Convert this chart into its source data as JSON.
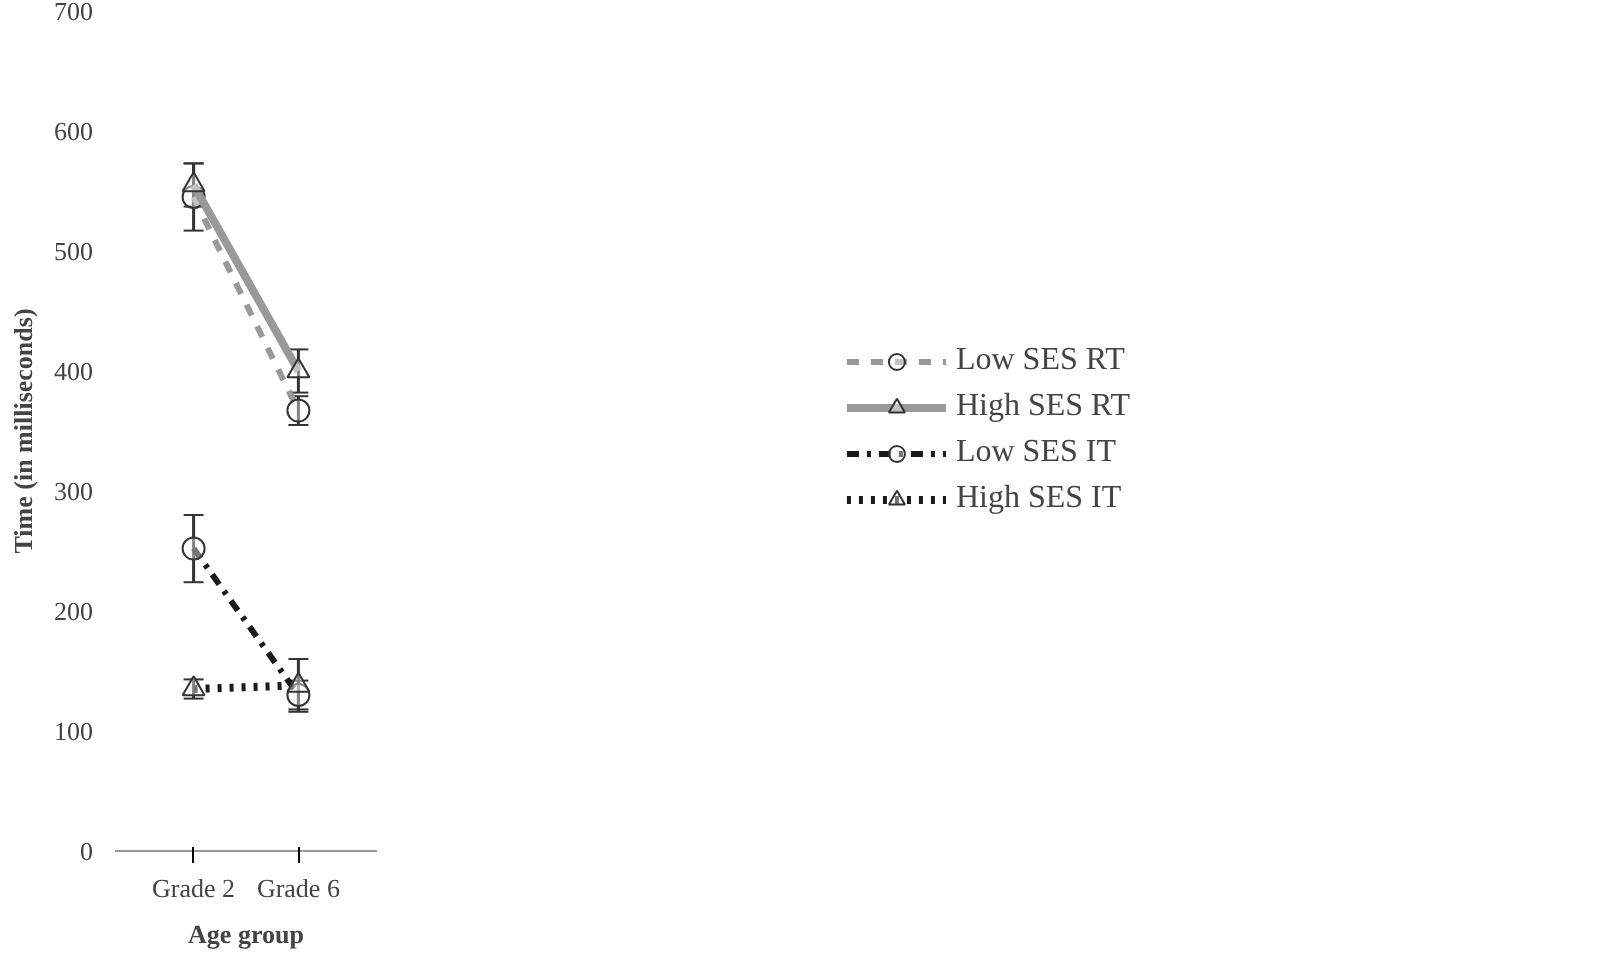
{
  "chart_data": {
    "type": "line",
    "xlabel": "Age group",
    "ylabel": "Time (in milliseconds)",
    "categories": [
      "Grade 2",
      "Grade 6"
    ],
    "ylim": [
      0,
      700
    ],
    "yticks": [
      0,
      100,
      200,
      300,
      400,
      500,
      600,
      700
    ],
    "grid": false,
    "legend": "right",
    "series": [
      {
        "name": "Low SES RT",
        "color": "#999999",
        "values": [
          545,
          367
        ],
        "errors": [
          28,
          12
        ],
        "marker": "circle",
        "line_style": "dashed"
      },
      {
        "name": "High SES RT",
        "color": "#999999",
        "values": [
          555,
          400
        ],
        "errors": [
          18,
          18
        ],
        "marker": "triangle",
        "line_style": "solid"
      },
      {
        "name": "Low SES IT",
        "color": "#1a1a1a",
        "values": [
          252,
          130
        ],
        "errors": [
          28,
          12
        ],
        "marker": "circle",
        "line_style": "dashdot"
      },
      {
        "name": "High SES IT",
        "color": "#1a1a1a",
        "values": [
          135,
          138
        ],
        "errors": [
          8,
          22
        ],
        "marker": "triangle",
        "line_style": "dotted"
      }
    ]
  }
}
